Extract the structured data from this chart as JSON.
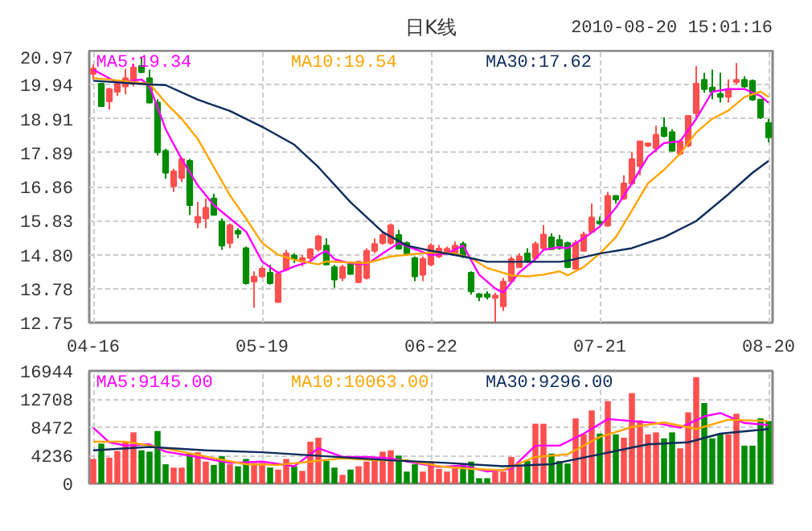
{
  "chart_data": [
    {
      "type": "candlestick",
      "title": "日K线",
      "annotations": [
        "2010-08-20 15:01:16"
      ],
      "categories": [
        "04-16",
        null,
        null,
        null,
        null,
        null,
        null,
        null,
        null,
        null,
        null,
        null,
        null,
        null,
        null,
        null,
        null,
        null,
        null,
        null,
        null,
        "05-19",
        null,
        null,
        null,
        null,
        null,
        null,
        null,
        null,
        null,
        null,
        null,
        null,
        null,
        null,
        null,
        null,
        null,
        null,
        null,
        null,
        "06-22",
        null,
        null,
        null,
        null,
        null,
        null,
        null,
        null,
        null,
        null,
        null,
        null,
        null,
        null,
        null,
        null,
        null,
        null,
        null,
        null,
        "07-21",
        null,
        null,
        null,
        null,
        null,
        null,
        null,
        null,
        null,
        null,
        null,
        null,
        null,
        null,
        null,
        null,
        null,
        null,
        null,
        null,
        "08-20"
      ],
      "ohlc": [
        [
          20.27,
          20.55,
          20.1,
          20.43
        ],
        [
          19.97,
          19.99,
          19.27,
          19.29
        ],
        [
          19.44,
          19.85,
          19.19,
          19.81
        ],
        [
          19.73,
          20.0,
          19.6,
          19.97
        ],
        [
          19.89,
          20.42,
          19.65,
          20.14
        ],
        [
          19.97,
          20.58,
          19.89,
          20.46
        ],
        [
          20.51,
          20.79,
          20.3,
          20.32
        ],
        [
          20.14,
          20.4,
          19.38,
          19.4
        ],
        [
          19.4,
          19.5,
          17.8,
          17.9
        ],
        [
          17.94,
          18.0,
          17.1,
          17.28
        ],
        [
          16.87,
          17.4,
          16.7,
          17.32
        ],
        [
          17.12,
          17.75,
          17.0,
          17.69
        ],
        [
          17.64,
          17.7,
          16.0,
          16.3
        ],
        [
          15.78,
          16.4,
          15.6,
          15.95
        ],
        [
          15.9,
          16.5,
          15.6,
          16.22
        ],
        [
          16.5,
          16.65,
          16.0,
          16.01
        ],
        [
          15.81,
          15.9,
          14.95,
          15.08
        ],
        [
          15.16,
          15.75,
          15.0,
          15.69
        ],
        [
          15.52,
          15.6,
          15.3,
          15.44
        ],
        [
          15.0,
          15.05,
          13.9,
          13.94
        ],
        [
          13.99,
          14.3,
          13.2,
          14.14
        ],
        [
          14.15,
          14.45,
          14.1,
          14.38
        ],
        [
          14.26,
          14.5,
          13.9,
          13.94
        ],
        [
          13.37,
          14.3,
          13.37,
          14.22
        ],
        [
          14.35,
          14.95,
          14.3,
          14.84
        ],
        [
          14.78,
          14.85,
          14.55,
          14.68
        ],
        [
          14.6,
          14.8,
          14.45,
          14.7
        ],
        [
          14.7,
          15.0,
          14.6,
          14.97
        ],
        [
          14.97,
          15.4,
          14.9,
          15.36
        ],
        [
          15.08,
          15.3,
          14.5,
          14.51
        ],
        [
          14.43,
          14.5,
          13.8,
          14.05
        ],
        [
          14.1,
          14.5,
          14.0,
          14.43
        ],
        [
          14.51,
          14.6,
          14.2,
          14.22
        ],
        [
          13.97,
          14.62,
          13.95,
          14.59
        ],
        [
          14.1,
          15.0,
          14.05,
          14.92
        ],
        [
          14.92,
          15.3,
          14.85,
          15.13
        ],
        [
          15.16,
          15.5,
          15.1,
          15.4
        ],
        [
          15.16,
          15.75,
          15.1,
          15.69
        ],
        [
          15.4,
          15.55,
          14.95,
          14.99
        ],
        [
          15.16,
          15.2,
          14.8,
          14.84
        ],
        [
          14.7,
          14.75,
          14.0,
          14.15
        ],
        [
          14.2,
          14.75,
          14.0,
          14.68
        ],
        [
          14.51,
          15.15,
          14.45,
          15.08
        ],
        [
          14.75,
          15.1,
          14.7,
          14.99
        ],
        [
          14.9,
          15.05,
          14.85,
          14.98
        ],
        [
          14.84,
          15.2,
          14.8,
          15.08
        ],
        [
          15.13,
          15.2,
          14.7,
          14.75
        ],
        [
          14.26,
          14.3,
          13.6,
          13.69
        ],
        [
          13.61,
          13.65,
          13.4,
          13.53
        ],
        [
          13.61,
          13.7,
          13.45,
          13.53
        ],
        [
          13.5,
          13.65,
          12.75,
          13.57
        ],
        [
          13.24,
          14.1,
          13.1,
          13.99
        ],
        [
          14.0,
          14.75,
          13.95,
          14.67
        ],
        [
          14.43,
          14.85,
          14.4,
          14.75
        ],
        [
          14.84,
          15.0,
          14.55,
          14.6
        ],
        [
          14.7,
          15.2,
          14.65,
          15.13
        ],
        [
          15.0,
          15.7,
          14.95,
          15.41
        ],
        [
          15.33,
          15.45,
          14.95,
          14.97
        ],
        [
          15.25,
          15.4,
          14.95,
          15.0
        ],
        [
          15.16,
          15.2,
          14.4,
          14.43
        ],
        [
          14.38,
          15.25,
          14.35,
          15.16
        ],
        [
          14.92,
          15.5,
          14.9,
          15.41
        ],
        [
          15.49,
          16.35,
          15.45,
          15.93
        ],
        [
          15.8,
          15.95,
          15.7,
          15.75
        ],
        [
          15.68,
          16.7,
          15.65,
          16.58
        ],
        [
          16.58,
          16.6,
          16.35,
          16.47
        ],
        [
          16.5,
          17.2,
          16.45,
          16.96
        ],
        [
          16.96,
          17.9,
          16.9,
          17.69
        ],
        [
          17.48,
          18.25,
          17.2,
          18.23
        ],
        [
          18.1,
          18.2,
          18.05,
          18.17
        ],
        [
          18.02,
          18.7,
          17.9,
          18.43
        ],
        [
          18.64,
          18.95,
          18.35,
          18.39
        ],
        [
          18.51,
          18.6,
          17.94,
          17.94
        ],
        [
          17.86,
          18.3,
          17.8,
          18.23
        ],
        [
          18.1,
          19.0,
          18.05,
          19.0
        ],
        [
          19.08,
          20.5,
          18.9,
          19.97
        ],
        [
          20.09,
          20.3,
          19.7,
          19.81
        ],
        [
          19.86,
          20.4,
          19.5,
          19.73
        ],
        [
          19.66,
          20.3,
          19.4,
          19.57
        ],
        [
          19.57,
          20.1,
          19.4,
          19.81
        ],
        [
          20.02,
          20.6,
          19.95,
          20.09
        ],
        [
          20.09,
          20.2,
          19.85,
          19.89
        ],
        [
          20.06,
          20.1,
          19.45,
          19.49
        ],
        [
          19.49,
          19.5,
          18.9,
          18.95
        ],
        [
          18.79,
          18.9,
          18.2,
          18.35
        ]
      ],
      "colors": [
        "#ff4f4f",
        "#008c00",
        "#ff4f4f",
        "#ff4f4f",
        "#ff4f4f",
        "#ff4f4f",
        "#008c00",
        "#008c00",
        "#008c00",
        "#008c00",
        "#ff4f4f",
        "#ff4f4f",
        "#008c00",
        "#ff4f4f",
        "#ff4f4f",
        "#008c00",
        "#008c00",
        "#ff4f4f",
        "#008c00",
        "#008c00",
        "#ff4f4f",
        "#ff4f4f",
        "#008c00",
        "#ff4f4f",
        "#ff4f4f",
        "#008c00",
        "#ff4f4f",
        "#ff4f4f",
        "#ff4f4f",
        "#008c00",
        "#008c00",
        "#ff4f4f",
        "#008c00",
        "#ff4f4f",
        "#ff4f4f",
        "#ff4f4f",
        "#ff4f4f",
        "#ff4f4f",
        "#008c00",
        "#008c00",
        "#008c00",
        "#ff4f4f",
        "#ff4f4f",
        "#ff4f4f",
        "#ff4f4f",
        "#ff4f4f",
        "#008c00",
        "#008c00",
        "#008c00",
        "#008c00",
        "#ff4f4f",
        "#ff4f4f",
        "#ff4f4f",
        "#ff4f4f",
        "#008c00",
        "#ff4f4f",
        "#ff4f4f",
        "#008c00",
        "#008c00",
        "#008c00",
        "#ff4f4f",
        "#ff4f4f",
        "#ff4f4f",
        "#008c00",
        "#ff4f4f",
        "#008c00",
        "#ff4f4f",
        "#ff4f4f",
        "#ff4f4f",
        "#ff4f4f",
        "#ff4f4f",
        "#008c00",
        "#008c00",
        "#ff4f4f",
        "#ff4f4f",
        "#ff4f4f",
        "#008c00",
        "#008c00",
        "#008c00",
        "#ff4f4f",
        "#ff4f4f",
        "#008c00",
        "#008c00",
        "#008c00",
        "#008c00"
      ],
      "series": [
        {
          "name": "MA5:19.34",
          "type": "line",
          "color": "#ff00ff",
          "values": [
            20.4,
            null,
            null,
            20.0,
            null,
            null,
            20.1,
            19.9,
            null,
            18.6,
            null,
            17.69,
            null,
            16.9,
            null,
            16.3,
            null,
            15.9,
            null,
            15.5,
            null,
            14.6,
            null,
            14.25,
            null,
            14.45,
            null,
            14.6,
            14.8,
            14.92,
            14.67,
            null,
            14.54,
            null,
            14.51,
            null,
            14.84,
            null,
            15.16,
            null,
            14.97,
            null,
            14.79,
            null,
            14.84,
            null,
            15.08,
            null,
            14.2,
            null,
            13.78,
            13.66,
            null,
            14.27,
            null,
            14.67,
            14.95,
            null,
            15.03,
            15.0,
            null,
            15.3,
            null,
            15.65,
            null,
            16.22,
            null,
            16.96,
            null,
            17.77,
            null,
            18.18,
            null,
            18.23,
            null,
            18.91,
            null,
            19.73,
            null,
            19.81,
            null,
            19.81,
            null,
            19.6,
            19.4
          ]
        },
        {
          "name": "MA10:19.54",
          "type": "line",
          "color": "#ffa500",
          "values": [
            20.14,
            null,
            null,
            null,
            20.05,
            null,
            null,
            19.97,
            null,
            19.4,
            null,
            18.91,
            null,
            18.3,
            null,
            17.45,
            null,
            16.6,
            null,
            15.9,
            null,
            15.16,
            null,
            14.8,
            null,
            14.65,
            null,
            null,
            14.51,
            14.6,
            null,
            null,
            null,
            null,
            14.55,
            null,
            null,
            14.75,
            null,
            14.8,
            null,
            null,
            14.87,
            null,
            null,
            14.84,
            null,
            14.7,
            null,
            14.4,
            null,
            null,
            14.18,
            null,
            14.15,
            null,
            14.2,
            null,
            14.3,
            14.18,
            null,
            14.43,
            null,
            14.84,
            null,
            15.33,
            null,
            16.14,
            null,
            16.96,
            null,
            17.37,
            null,
            17.86,
            null,
            18.5,
            null,
            18.91,
            null,
            19.16,
            null,
            19.57,
            null,
            19.73,
            19.57
          ]
        },
        {
          "name": "MA30:17.62",
          "type": "line",
          "color": "#0c2c5c",
          "values": [
            20.06,
            null,
            null,
            null,
            null,
            null,
            null,
            19.95,
            null,
            19.93,
            null,
            null,
            null,
            19.49,
            null,
            null,
            null,
            19.15,
            null,
            null,
            null,
            18.67,
            null,
            null,
            null,
            18.13,
            null,
            null,
            17.45,
            null,
            null,
            null,
            16.39,
            null,
            null,
            null,
            15.49,
            null,
            null,
            15.08,
            null,
            null,
            14.92,
            null,
            null,
            null,
            14.75,
            null,
            null,
            14.59,
            null,
            null,
            null,
            null,
            14.59,
            null,
            null,
            null,
            14.59,
            14.62,
            null,
            null,
            null,
            14.84,
            null,
            null,
            null,
            15.0,
            null,
            null,
            null,
            15.33,
            null,
            null,
            null,
            15.82,
            null,
            null,
            null,
            16.63,
            null,
            null,
            17.28,
            null,
            17.64
          ]
        }
      ],
      "ylim": [
        12.75,
        20.97
      ],
      "yticks": [
        12.75,
        13.78,
        {
          "value": 14.8,
          "label": "14.80"
        },
        15.83,
        16.86,
        17.89,
        18.91,
        19.94,
        20.97
      ],
      "grid": true,
      "legend": "top"
    },
    {
      "type": "bar",
      "categories": [
        null,
        null,
        null,
        null,
        null,
        null,
        null,
        null,
        null,
        null,
        null,
        null,
        null,
        null,
        null,
        null,
        null,
        null,
        null,
        null,
        null,
        null,
        null,
        null,
        null,
        null,
        null,
        null,
        null,
        null,
        null,
        null,
        null,
        null,
        null,
        null,
        null,
        null,
        null,
        null,
        null,
        null,
        null,
        null,
        null,
        null,
        null,
        null,
        null,
        null,
        null,
        null,
        null,
        null,
        null,
        null,
        null,
        null,
        null,
        null,
        null,
        null,
        null,
        null,
        null,
        null,
        null,
        null,
        null,
        null,
        null,
        null,
        null,
        null,
        null,
        null,
        null,
        null,
        null,
        null,
        null,
        null,
        null,
        null,
        null
      ],
      "values": [
        3700,
        6000,
        3900,
        4900,
        6300,
        7700,
        5000,
        4800,
        7900,
        2900,
        2400,
        2400,
        4600,
        4700,
        3300,
        2800,
        4100,
        2900,
        2600,
        3700,
        3100,
        3100,
        2400,
        2100,
        3700,
        2600,
        1900,
        6300,
        6900,
        3400,
        2400,
        1300,
        2100,
        2600,
        3300,
        4000,
        4800,
        5000,
        4200,
        1800,
        2900,
        1800,
        3300,
        2200,
        1800,
        2800,
        2900,
        3300,
        800,
        800,
        1800,
        1800,
        4000,
        2600,
        3400,
        9000,
        9000,
        4500,
        3400,
        3000,
        9800,
        7400,
        11000,
        7500,
        12400,
        7400,
        6900,
        13600,
        9500,
        7400,
        7700,
        6800,
        7700,
        5300,
        10700,
        16000,
        12100,
        6800,
        7400,
        7400,
        10500,
        5700,
        5700,
        9800,
        9400
      ],
      "colors": [
        "#ff4f4f",
        "#008c00",
        "#ff4f4f",
        "#ff4f4f",
        "#ff4f4f",
        "#ff4f4f",
        "#008c00",
        "#008c00",
        "#008c00",
        "#008c00",
        "#ff4f4f",
        "#ff4f4f",
        "#008c00",
        "#ff4f4f",
        "#ff4f4f",
        "#008c00",
        "#008c00",
        "#ff4f4f",
        "#008c00",
        "#008c00",
        "#ff4f4f",
        "#ff4f4f",
        "#008c00",
        "#ff4f4f",
        "#ff4f4f",
        "#008c00",
        "#ff4f4f",
        "#ff4f4f",
        "#ff4f4f",
        "#008c00",
        "#008c00",
        "#ff4f4f",
        "#008c00",
        "#ff4f4f",
        "#ff4f4f",
        "#ff4f4f",
        "#ff4f4f",
        "#ff4f4f",
        "#008c00",
        "#008c00",
        "#008c00",
        "#ff4f4f",
        "#ff4f4f",
        "#ff4f4f",
        "#ff4f4f",
        "#ff4f4f",
        "#008c00",
        "#008c00",
        "#008c00",
        "#008c00",
        "#ff4f4f",
        "#ff4f4f",
        "#ff4f4f",
        "#ff4f4f",
        "#008c00",
        "#ff4f4f",
        "#ff4f4f",
        "#008c00",
        "#008c00",
        "#008c00",
        "#ff4f4f",
        "#ff4f4f",
        "#ff4f4f",
        "#008c00",
        "#ff4f4f",
        "#008c00",
        "#ff4f4f",
        "#ff4f4f",
        "#ff4f4f",
        "#ff4f4f",
        "#ff4f4f",
        "#008c00",
        "#008c00",
        "#ff4f4f",
        "#ff4f4f",
        "#ff4f4f",
        "#008c00",
        "#008c00",
        "#008c00",
        "#ff4f4f",
        "#ff4f4f",
        "#008c00",
        "#008c00",
        "#008c00",
        "#008c00"
      ],
      "series": [
        {
          "name": "MA5:9145.00",
          "type": "line",
          "color": "#ff00ff",
          "values": [
            8400,
            null,
            6200,
            null,
            5700,
            null,
            null,
            5900,
            null,
            4800,
            null,
            null,
            null,
            4000,
            null,
            null,
            null,
            3100,
            null,
            null,
            null,
            3300,
            null,
            null,
            null,
            2600,
            null,
            null,
            5300,
            null,
            null,
            4000,
            null,
            null,
            4000,
            null,
            null,
            3800,
            null,
            null,
            3100,
            null,
            null,
            2500,
            null,
            null,
            2700,
            null,
            null,
            1800,
            null,
            null,
            2200,
            null,
            null,
            5700,
            null,
            null,
            5700,
            null,
            null,
            7500,
            null,
            null,
            9700,
            null,
            null,
            9400,
            null,
            null,
            9100,
            null,
            null,
            8400,
            null,
            null,
            10100,
            null,
            10600,
            null,
            null,
            9100,
            null,
            null,
            8800
          ]
        },
        {
          "name": "MA10:10063.00",
          "type": "line",
          "color": "#ffa500",
          "values": [
            6300,
            null,
            null,
            null,
            6300,
            null,
            null,
            5700,
            null,
            null,
            null,
            4800,
            null,
            null,
            null,
            3800,
            null,
            null,
            null,
            2900,
            null,
            null,
            null,
            2800,
            null,
            null,
            null,
            3300,
            null,
            null,
            null,
            3800,
            null,
            null,
            null,
            3500,
            null,
            null,
            null,
            3500,
            null,
            null,
            null,
            2600,
            null,
            null,
            null,
            2200,
            null,
            null,
            null,
            2000,
            null,
            null,
            null,
            4000,
            null,
            null,
            null,
            4400,
            null,
            null,
            null,
            7000,
            null,
            null,
            null,
            8500,
            null,
            null,
            null,
            9200,
            null,
            null,
            null,
            8200,
            null,
            null,
            null,
            9600,
            null,
            null,
            null,
            null,
            9400
          ]
        },
        {
          "name": "MA30:9296.00",
          "type": "line",
          "color": "#0c2c5c",
          "values": [
            5000,
            null,
            null,
            null,
            null,
            null,
            null,
            5500,
            null,
            null,
            null,
            null,
            null,
            null,
            5000,
            null,
            null,
            null,
            null,
            null,
            null,
            4700,
            null,
            null,
            null,
            null,
            null,
            null,
            null,
            4100,
            null,
            null,
            null,
            null,
            null,
            null,
            null,
            3500,
            null,
            null,
            null,
            null,
            null,
            null,
            3100,
            null,
            null,
            null,
            null,
            null,
            null,
            2600,
            null,
            null,
            null,
            null,
            null,
            2900,
            null,
            null,
            null,
            null,
            null,
            4400,
            null,
            null,
            null,
            null,
            null,
            5900,
            null,
            null,
            null,
            null,
            6200,
            null,
            null,
            null,
            7500,
            null,
            null,
            null,
            null,
            null,
            8200
          ]
        }
      ],
      "ylim": [
        0,
        16944
      ],
      "yticks": [
        0,
        4236,
        8472,
        12708,
        16944
      ],
      "grid": true,
      "legend": "top",
      "tick_labels": "y"
    }
  ]
}
